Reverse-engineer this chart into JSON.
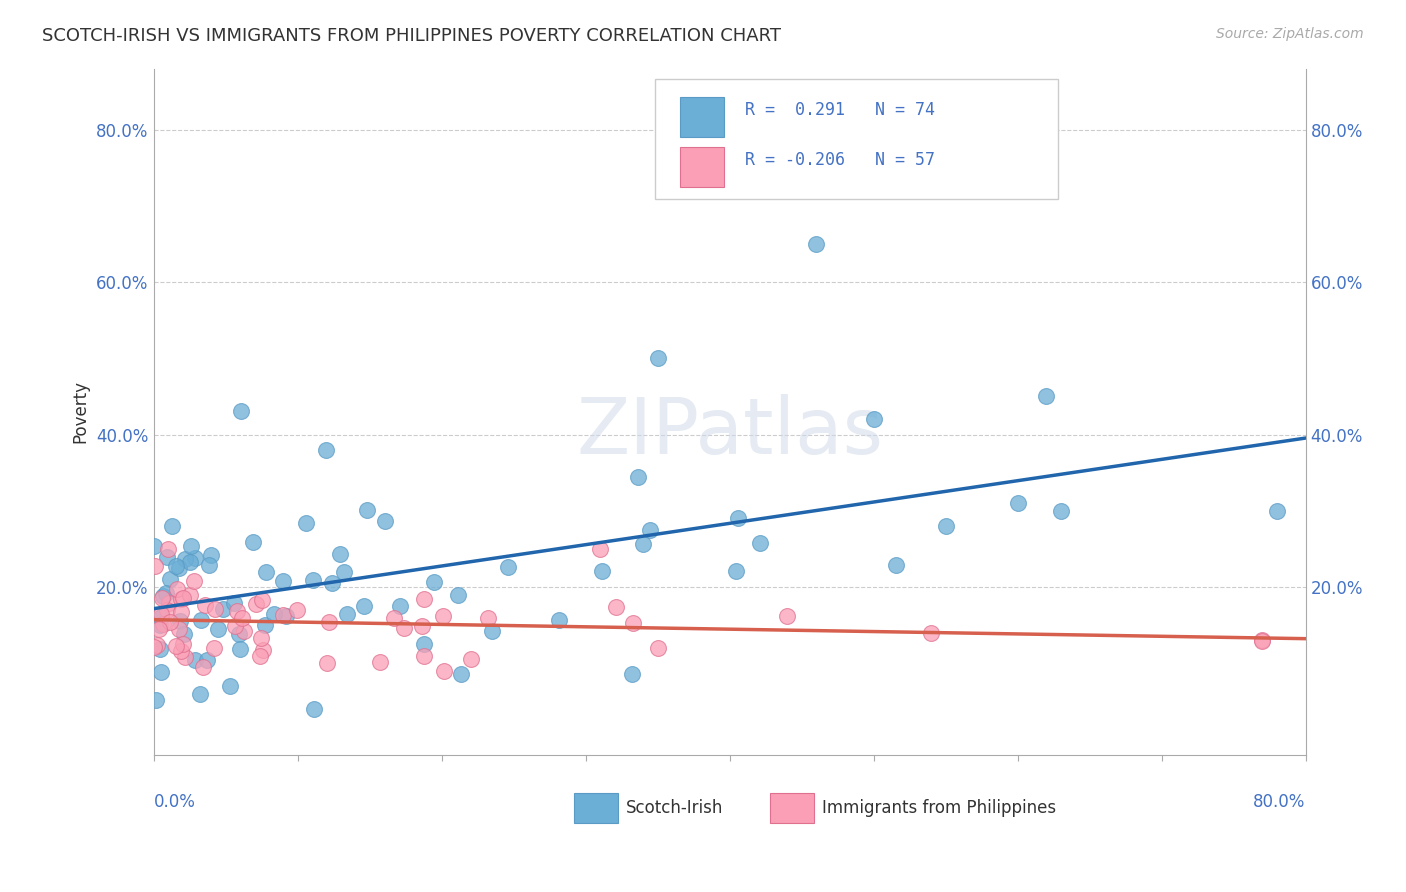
{
  "title": "SCOTCH-IRISH VS IMMIGRANTS FROM PHILIPPINES POVERTY CORRELATION CHART",
  "source": "Source: ZipAtlas.com",
  "ylabel": "Poverty",
  "ytick_labels": [
    "20.0%",
    "40.0%",
    "60.0%",
    "80.0%"
  ],
  "ytick_values": [
    0.2,
    0.4,
    0.6,
    0.8
  ],
  "xlim": [
    0.0,
    0.8
  ],
  "ylim": [
    -0.02,
    0.88
  ],
  "legend_entry1": "R =  0.291  N = 74",
  "legend_entry2": "R = -0.206  N = 57",
  "legend_label1": "Scotch-Irish",
  "legend_label2": "Immigrants from Philippines",
  "color_blue": "#6baed6",
  "color_blue_edge": "#5a9bc5",
  "color_blue_line": "#2166ac",
  "color_pink": "#fa9fb5",
  "color_pink_edge": "#e07090",
  "color_pink_line": "#d6604d",
  "background_color": "#ffffff",
  "grid_color": "#cccccc",
  "title_fontsize": 13,
  "tick_label_color": "#4472c4",
  "n_si": 74,
  "n_ph": 57
}
